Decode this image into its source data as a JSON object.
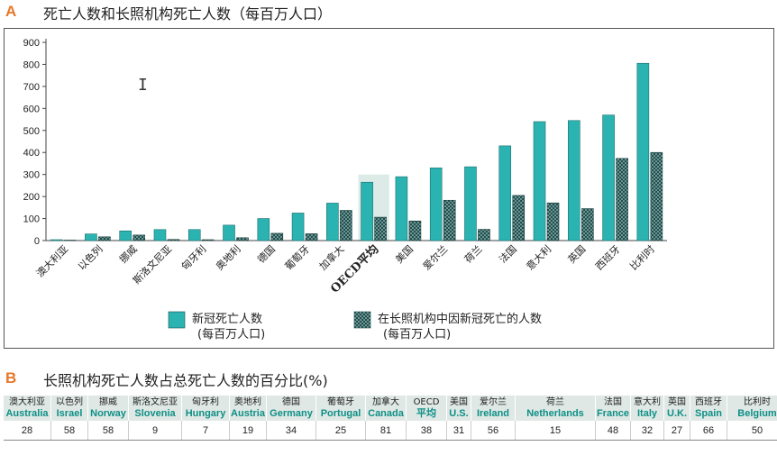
{
  "panel_a": {
    "letter": "A",
    "title": "死亡人数和长照机构死亡人数（每百万人口）"
  },
  "panel_b": {
    "letter": "B",
    "title": "长照机构死亡人数占总死亡人数的百分比(%)"
  },
  "chart_data": {
    "type": "bar",
    "categories": [
      "澳大利亚",
      "以色列",
      "挪威",
      "斯洛文尼亚",
      "匈牙利",
      "奥地利",
      "德国",
      "葡萄牙",
      "加拿大",
      "OECD平均",
      "美国",
      "爱尔兰",
      "荷兰",
      "法国",
      "意大利",
      "英国",
      "西班牙",
      "比利时"
    ],
    "highlight_category": "OECD平均",
    "series": [
      {
        "name": "新冠死亡人数\n(每百万人口)",
        "color": "#2bb3b1",
        "values": [
          4,
          30,
          44,
          50,
          50,
          70,
          100,
          125,
          170,
          265,
          290,
          330,
          335,
          430,
          540,
          545,
          570,
          805
        ]
      },
      {
        "name": "在长照机构中因新冠死亡的人数\n(每百万人口)",
        "color": "#1f4f4e",
        "pattern": "dotted",
        "values": [
          2,
          17,
          25,
          5,
          4,
          13,
          33,
          31,
          137,
          106,
          89,
          183,
          51,
          205,
          171,
          145,
          373,
          400
        ]
      }
    ],
    "ylim": [
      0,
      900
    ],
    "yticks": [
      0,
      100,
      200,
      300,
      400,
      500,
      600,
      700,
      800,
      900
    ],
    "legend_position": "bottom",
    "grid": false
  },
  "table_b": {
    "columns": [
      {
        "zh": "澳大利亚",
        "en": "Australia",
        "value": "28"
      },
      {
        "zh": "以色列",
        "en": "Israel",
        "value": "58"
      },
      {
        "zh": "挪威",
        "en": "Norway",
        "value": "58"
      },
      {
        "zh": "斯洛文尼亚",
        "en": "Slovenia",
        "value": "9"
      },
      {
        "zh": "匈牙利",
        "en": "Hungary",
        "value": "7"
      },
      {
        "zh": "奥地利",
        "en": "Austria",
        "value": "19"
      },
      {
        "zh": "德国",
        "en": "Germany",
        "value": "34"
      },
      {
        "zh": "葡萄牙",
        "en": "Portugal",
        "value": "25"
      },
      {
        "zh": "加拿大",
        "en": "Canada",
        "value": "81"
      },
      {
        "zh": "OECD",
        "en": "平均",
        "value": "38"
      },
      {
        "zh": "美国",
        "en": "U.S.",
        "value": "31"
      },
      {
        "zh": "爱尔兰",
        "en": "Ireland",
        "value": "56"
      },
      {
        "zh": "荷兰",
        "en": "Netherlands",
        "value": "15"
      },
      {
        "zh": "法国",
        "en": "France",
        "value": "48"
      },
      {
        "zh": "意大利",
        "en": "Italy",
        "value": "32"
      },
      {
        "zh": "英国",
        "en": "U.K.",
        "value": "27"
      },
      {
        "zh": "西班牙",
        "en": "Spain",
        "value": "66"
      },
      {
        "zh": "比利时",
        "en": "Belgium",
        "value": "50"
      }
    ]
  }
}
